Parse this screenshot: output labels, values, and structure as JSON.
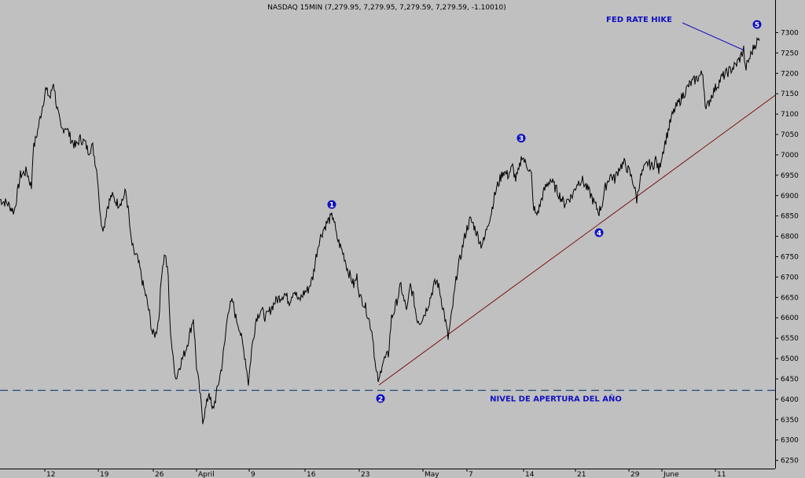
{
  "chart_data": {
    "type": "line",
    "title": "NASDAQ 15MIN (7,279.95, 7,279.95, 7,279.59, 7,279.59, -1.10010)",
    "ylim": [
      6230,
      7380
    ],
    "yticks": [
      7300,
      7250,
      7200,
      7150,
      7100,
      7050,
      7000,
      6950,
      6900,
      6850,
      6800,
      6750,
      6700,
      6650,
      6600,
      6550,
      6500,
      6450,
      6400,
      6350,
      6300,
      6250
    ],
    "xlim": [
      0,
      986
    ],
    "xticks": [
      {
        "label": "12",
        "x": 57
      },
      {
        "label": "19",
        "x": 125
      },
      {
        "label": "26",
        "x": 195
      },
      {
        "label": "April",
        "x": 250
      },
      {
        "label": "9",
        "x": 317
      },
      {
        "label": "16",
        "x": 388
      },
      {
        "label": "23",
        "x": 457
      },
      {
        "label": "May",
        "x": 538
      },
      {
        "label": "7",
        "x": 594
      },
      {
        "label": "14",
        "x": 666
      },
      {
        "label": "21",
        "x": 732
      },
      {
        "label": "29",
        "x": 800
      },
      {
        "label": "June",
        "x": 842
      },
      {
        "label": "11",
        "x": 910
      }
    ],
    "series": [
      {
        "points": [
          [
            0,
            6890
          ],
          [
            10,
            6880
          ],
          [
            18,
            6860
          ],
          [
            26,
            6950
          ],
          [
            34,
            6960
          ],
          [
            40,
            6920
          ],
          [
            42,
            7010
          ],
          [
            48,
            7060
          ],
          [
            54,
            7120
          ],
          [
            58,
            7160
          ],
          [
            64,
            7140
          ],
          [
            68,
            7180
          ],
          [
            72,
            7120
          ],
          [
            78,
            7060
          ],
          [
            84,
            7070
          ],
          [
            90,
            7040
          ],
          [
            96,
            7020
          ],
          [
            102,
            7040
          ],
          [
            108,
            7030
          ],
          [
            112,
            7010
          ],
          [
            118,
            7020
          ],
          [
            124,
            6950
          ],
          [
            128,
            6840
          ],
          [
            132,
            6820
          ],
          [
            136,
            6870
          ],
          [
            142,
            6900
          ],
          [
            150,
            6880
          ],
          [
            156,
            6890
          ],
          [
            160,
            6910
          ],
          [
            164,
            6850
          ],
          [
            166,
            6800
          ],
          [
            170,
            6760
          ],
          [
            174,
            6750
          ],
          [
            178,
            6720
          ],
          [
            182,
            6680
          ],
          [
            186,
            6650
          ],
          [
            190,
            6610
          ],
          [
            194,
            6560
          ],
          [
            198,
            6560
          ],
          [
            202,
            6600
          ],
          [
            206,
            6720
          ],
          [
            210,
            6760
          ],
          [
            214,
            6700
          ],
          [
            216,
            6590
          ],
          [
            220,
            6500
          ],
          [
            224,
            6450
          ],
          [
            228,
            6480
          ],
          [
            232,
            6500
          ],
          [
            236,
            6520
          ],
          [
            240,
            6550
          ],
          [
            246,
            6600
          ],
          [
            250,
            6480
          ],
          [
            254,
            6420
          ],
          [
            258,
            6350
          ],
          [
            262,
            6380
          ],
          [
            266,
            6420
          ],
          [
            270,
            6370
          ],
          [
            274,
            6400
          ],
          [
            278,
            6440
          ],
          [
            282,
            6480
          ],
          [
            286,
            6540
          ],
          [
            290,
            6620
          ],
          [
            296,
            6640
          ],
          [
            300,
            6600
          ],
          [
            304,
            6580
          ],
          [
            308,
            6540
          ],
          [
            312,
            6500
          ],
          [
            316,
            6440
          ],
          [
            320,
            6520
          ],
          [
            326,
            6600
          ],
          [
            332,
            6620
          ],
          [
            338,
            6600
          ],
          [
            344,
            6620
          ],
          [
            350,
            6640
          ],
          [
            356,
            6650
          ],
          [
            362,
            6660
          ],
          [
            368,
            6640
          ],
          [
            374,
            6670
          ],
          [
            380,
            6640
          ],
          [
            386,
            6660
          ],
          [
            392,
            6670
          ],
          [
            398,
            6700
          ],
          [
            402,
            6750
          ],
          [
            406,
            6790
          ],
          [
            412,
            6820
          ],
          [
            418,
            6840
          ],
          [
            424,
            6850
          ],
          [
            428,
            6800
          ],
          [
            432,
            6780
          ],
          [
            438,
            6750
          ],
          [
            442,
            6720
          ],
          [
            446,
            6700
          ],
          [
            450,
            6680
          ],
          [
            454,
            6700
          ],
          [
            458,
            6650
          ],
          [
            462,
            6640
          ],
          [
            466,
            6620
          ],
          [
            470,
            6590
          ],
          [
            474,
            6560
          ],
          [
            478,
            6470
          ],
          [
            482,
            6440
          ],
          [
            486,
            6490
          ],
          [
            490,
            6500
          ],
          [
            494,
            6510
          ],
          [
            498,
            6600
          ],
          [
            502,
            6620
          ],
          [
            506,
            6650
          ],
          [
            510,
            6680
          ],
          [
            514,
            6640
          ],
          [
            518,
            6620
          ],
          [
            522,
            6680
          ],
          [
            526,
            6650
          ],
          [
            530,
            6600
          ],
          [
            534,
            6590
          ],
          [
            540,
            6610
          ],
          [
            546,
            6640
          ],
          [
            552,
            6680
          ],
          [
            556,
            6690
          ],
          [
            560,
            6660
          ],
          [
            566,
            6600
          ],
          [
            570,
            6550
          ],
          [
            574,
            6600
          ],
          [
            578,
            6660
          ],
          [
            582,
            6720
          ],
          [
            586,
            6750
          ],
          [
            590,
            6790
          ],
          [
            594,
            6820
          ],
          [
            598,
            6840
          ],
          [
            602,
            6830
          ],
          [
            608,
            6800
          ],
          [
            612,
            6780
          ],
          [
            616,
            6790
          ],
          [
            620,
            6830
          ],
          [
            624,
            6850
          ],
          [
            628,
            6890
          ],
          [
            632,
            6920
          ],
          [
            636,
            6940
          ],
          [
            640,
            6960
          ],
          [
            646,
            6950
          ],
          [
            652,
            6970
          ],
          [
            656,
            6940
          ],
          [
            660,
            6960
          ],
          [
            664,
            7000
          ],
          [
            668,
            6980
          ],
          [
            672,
            6970
          ],
          [
            676,
            6950
          ],
          [
            678,
            6880
          ],
          [
            682,
            6850
          ],
          [
            686,
            6870
          ],
          [
            690,
            6900
          ],
          [
            694,
            6920
          ],
          [
            700,
            6940
          ],
          [
            706,
            6920
          ],
          [
            712,
            6900
          ],
          [
            718,
            6880
          ],
          [
            722,
            6890
          ],
          [
            728,
            6900
          ],
          [
            734,
            6930
          ],
          [
            740,
            6940
          ],
          [
            746,
            6920
          ],
          [
            752,
            6900
          ],
          [
            756,
            6880
          ],
          [
            762,
            6860
          ],
          [
            766,
            6880
          ],
          [
            770,
            6920
          ],
          [
            776,
            6950
          ],
          [
            782,
            6940
          ],
          [
            788,
            6970
          ],
          [
            794,
            6980
          ],
          [
            800,
            6960
          ],
          [
            806,
            6930
          ],
          [
            810,
            6890
          ],
          [
            814,
            6940
          ],
          [
            818,
            6960
          ],
          [
            824,
            6980
          ],
          [
            830,
            6970
          ],
          [
            834,
            6990
          ],
          [
            838,
            6960
          ],
          [
            842,
            7000
          ],
          [
            846,
            7030
          ],
          [
            850,
            7060
          ],
          [
            854,
            7090
          ],
          [
            858,
            7110
          ],
          [
            864,
            7130
          ],
          [
            870,
            7150
          ],
          [
            876,
            7170
          ],
          [
            882,
            7180
          ],
          [
            888,
            7190
          ],
          [
            894,
            7200
          ],
          [
            898,
            7110
          ],
          [
            902,
            7130
          ],
          [
            906,
            7150
          ],
          [
            912,
            7170
          ],
          [
            918,
            7190
          ],
          [
            924,
            7200
          ],
          [
            930,
            7210
          ],
          [
            936,
            7220
          ],
          [
            942,
            7240
          ],
          [
            946,
            7260
          ],
          [
            948,
            7210
          ],
          [
            952,
            7230
          ],
          [
            956,
            7250
          ],
          [
            960,
            7270
          ],
          [
            964,
            7280
          ],
          [
            966,
            7280
          ]
        ]
      }
    ],
    "trendline": {
      "from": [
        482,
        6435
      ],
      "to": [
        986,
        7146
      ]
    },
    "hline": {
      "y": 6422,
      "label": "NIVEL DE APERTURA DEL AÑO"
    },
    "wave_labels": [
      {
        "label": "1",
        "x": 422,
        "y": 6878
      },
      {
        "label": "2",
        "x": 484,
        "y": 6402
      },
      {
        "label": "3",
        "x": 663,
        "y": 7041
      },
      {
        "label": "4",
        "x": 762,
        "y": 6809
      },
      {
        "label": "5",
        "x": 963,
        "y": 7320
      }
    ],
    "annotation": {
      "text": "FED RATE HIKE",
      "arrow_to": [
        946,
        7257
      ]
    },
    "colors": {
      "background": "#c0c0c0",
      "price": "#000000",
      "trendline": "#7a1010",
      "hline": "#1d4a7a",
      "label": "#1010c0"
    }
  }
}
